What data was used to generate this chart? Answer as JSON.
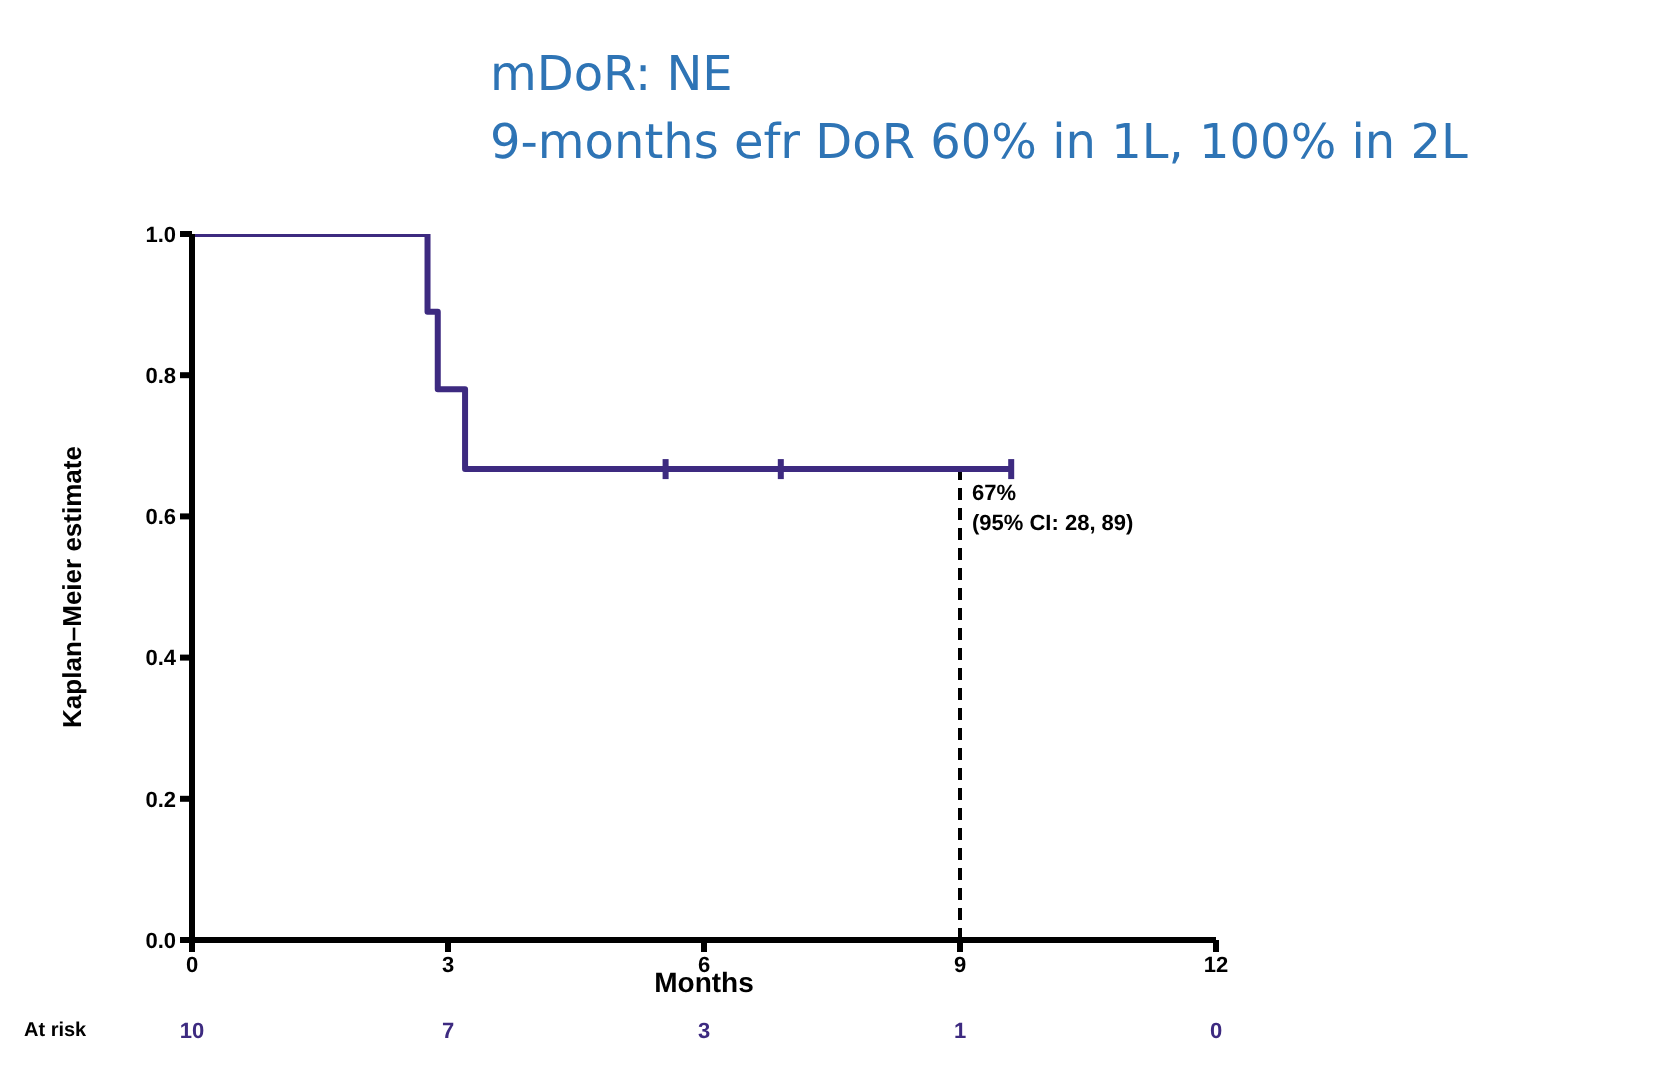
{
  "chart_data": {
    "type": "step",
    "title": "mDoR: NE",
    "subtitle": "9-months efr DoR 60% in 1L, 100% in 2L",
    "xlabel": "Months",
    "ylabel": "Kaplan–Meier estimate",
    "series": [
      {
        "color": "#3d2a80",
        "x": [
          0,
          2.76,
          2.88,
          3.2,
          9.6
        ],
        "values": [
          1,
          0.89,
          0.78,
          0.667,
          0.667
        ]
      },
      {
        "type": "scatter",
        "color": "#3d2a80",
        "x": [
          5.55,
          6.9,
          9.6
        ],
        "values": [
          0.667,
          0.667,
          0.667
        ]
      }
    ],
    "xlim": [
      0,
      12
    ],
    "xticks": [
      0,
      3,
      6,
      9,
      12
    ],
    "ylim": [
      0,
      1
    ],
    "yticks": [
      {
        "value": 0,
        "label": "0.0"
      },
      {
        "value": 0.2,
        "label": "0.2"
      },
      {
        "value": 0.4,
        "label": "0.4"
      },
      {
        "value": 0.6,
        "label": "0.6"
      },
      {
        "value": 0.8,
        "label": "0.8"
      },
      {
        "value": 1,
        "label": "1.0"
      }
    ],
    "ref_lines": [
      {
        "axis": "x",
        "value": 9,
        "color": "#000000",
        "line_style": "dashed"
      }
    ],
    "annotations": [
      {
        "text": "67%",
        "x": 9,
        "y": 0.667
      },
      {
        "text": "(95% CI: 28, 89)",
        "x": 9,
        "y": 0.667
      },
      "At risk",
      "10",
      "7",
      "3",
      "1",
      "0"
    ]
  }
}
